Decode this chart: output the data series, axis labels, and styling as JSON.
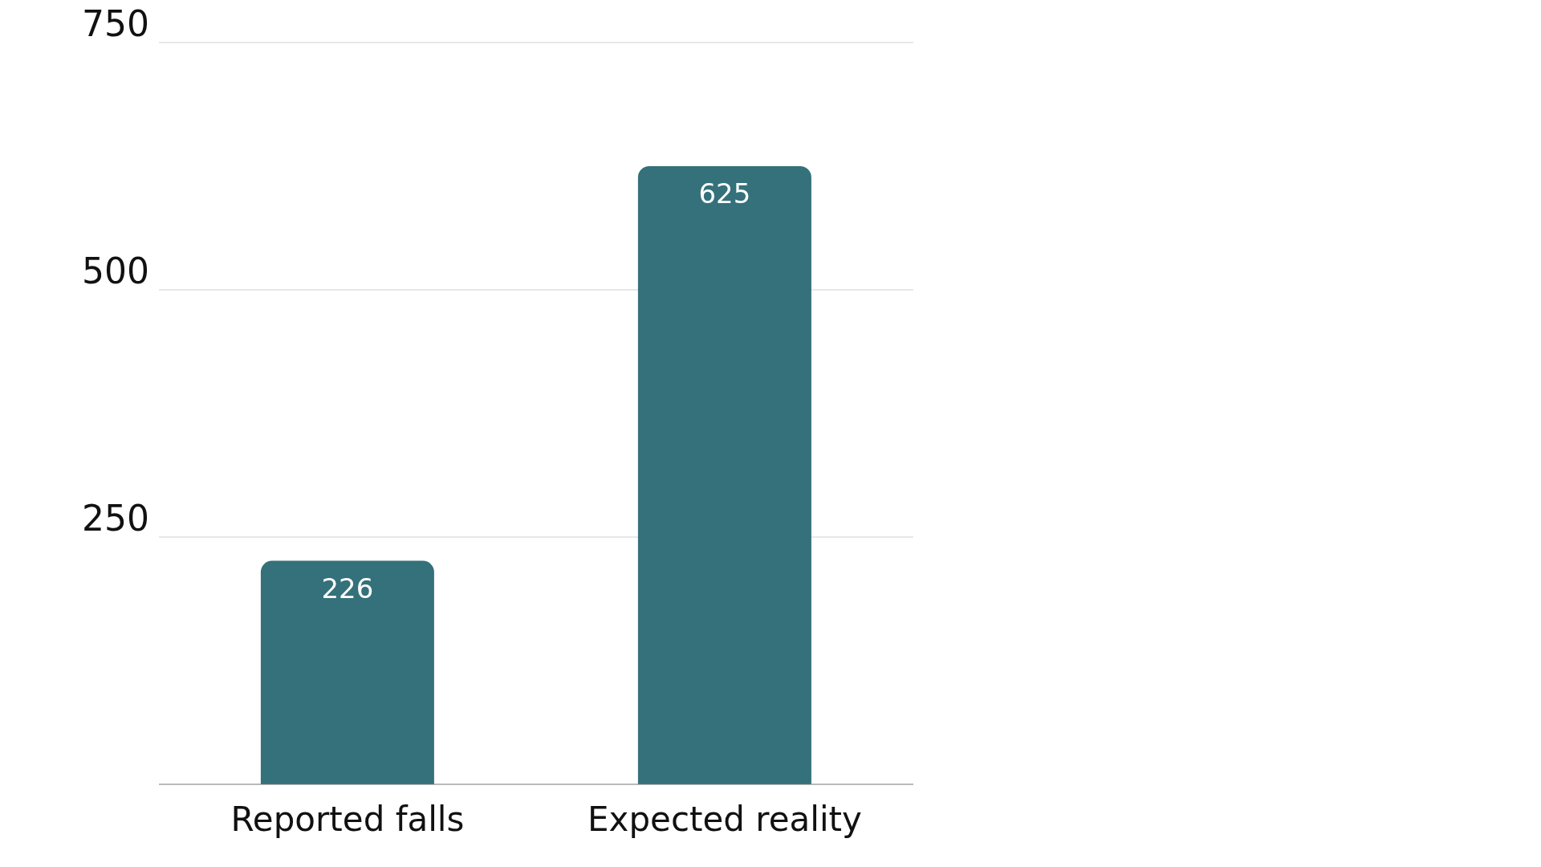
{
  "chart_data": {
    "type": "bar",
    "categories": [
      "Reported falls",
      "Expected reality"
    ],
    "values": [
      226,
      625
    ],
    "color": "#34717a",
    "ylim": [
      0,
      750
    ],
    "yticks": [
      250,
      500,
      750
    ],
    "grid": "y",
    "data_labels": true
  }
}
